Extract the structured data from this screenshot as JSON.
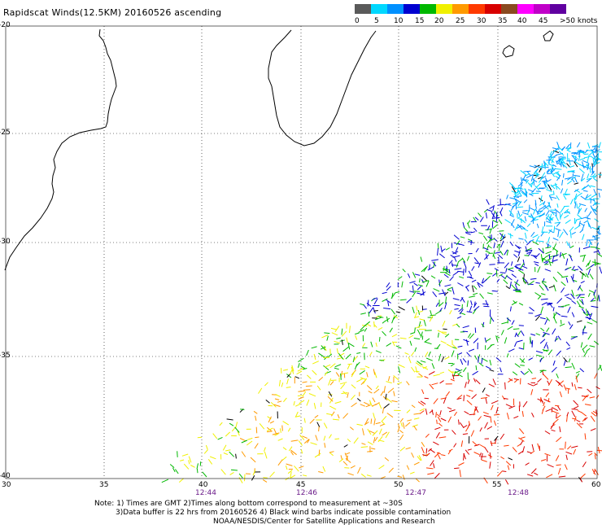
{
  "title": "Rapidscat Winds(12.5KM) 20160526 ascending",
  "colorbar": {
    "colors": [
      "#5a5a5a",
      "#00d8ff",
      "#0090ff",
      "#0000d0",
      "#00b800",
      "#f0f000",
      "#ff9a00",
      "#ff3a00",
      "#d80000",
      "#8a4a20",
      "#ff00ff",
      "#c000c8",
      "#6000a0"
    ],
    "labels": [
      "0",
      "5",
      "10",
      "15",
      "20",
      "25",
      "30",
      "35",
      "40",
      "45",
      ">50 knots"
    ]
  },
  "axes": {
    "lat_labels": [
      "-20",
      "-25",
      "-30",
      "-35",
      "-40"
    ],
    "lon_labels": [
      "30",
      "35",
      "40",
      "45",
      "50",
      "55",
      "60"
    ]
  },
  "times": [
    "12:44",
    "12:46",
    "12:47",
    "12:48"
  ],
  "notes": {
    "line1": "Note: 1) Times are GMT 2)Times along bottom correspond to measurement at ~30S",
    "line2": "3)Data buffer is 22 hrs from 20160526 4) Black wind barbs indicate possible contamination",
    "line3": "NOAA/NESDIS/Center for Satellite Applications and Research"
  }
}
